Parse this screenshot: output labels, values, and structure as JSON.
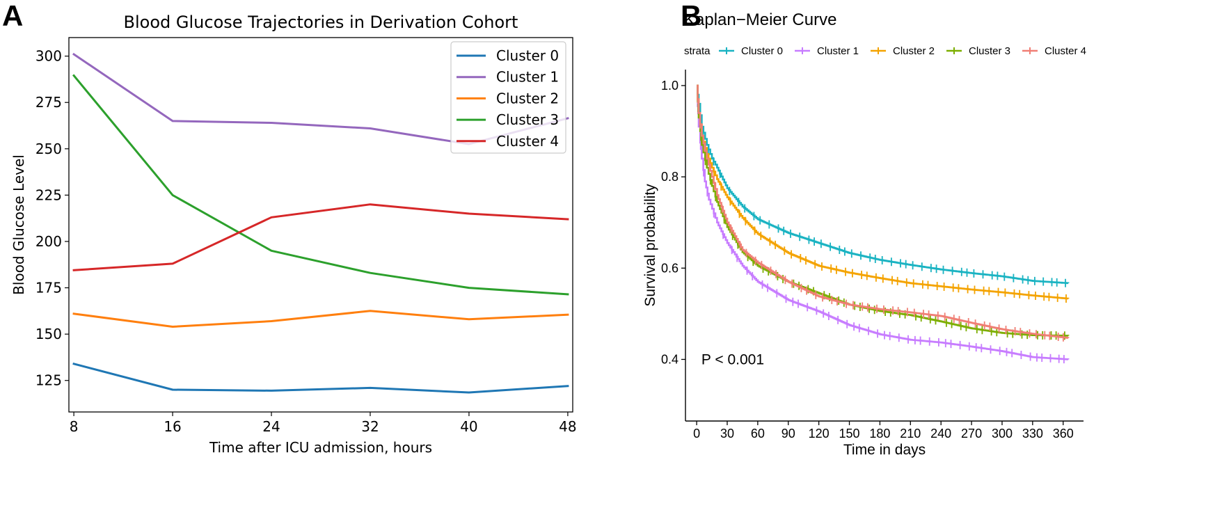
{
  "panel_labels": {
    "a": "A",
    "b": "B"
  },
  "chart_data": [
    {
      "type": "line",
      "title": "Blood Glucose Trajectories in Derivation Cohort",
      "xlabel": "Time after ICU admission, hours",
      "ylabel": "Blood Glucose Level",
      "x": [
        8,
        16,
        24,
        32,
        40,
        48
      ],
      "xticks": [
        "8",
        "16",
        "24",
        "32",
        "40",
        "48"
      ],
      "xlim": [
        7.6,
        48.4
      ],
      "ylim": [
        108,
        310
      ],
      "yticks": [
        125,
        150,
        175,
        200,
        225,
        250,
        275,
        300
      ],
      "legend_position": "top-right",
      "series": [
        {
          "name": "Cluster 0",
          "color": "#1f77b4",
          "values": [
            134,
            120,
            119.5,
            121,
            118.5,
            122
          ]
        },
        {
          "name": "Cluster 1",
          "color": "#9467bd",
          "values": [
            301,
            265,
            264,
            261,
            252.5,
            266.5
          ]
        },
        {
          "name": "Cluster 2",
          "color": "#ff7f0e",
          "values": [
            161,
            154,
            157,
            162.5,
            158,
            160.5
          ]
        },
        {
          "name": "Cluster 3",
          "color": "#2ca02c",
          "values": [
            289.5,
            225,
            195,
            183,
            175,
            171.5
          ]
        },
        {
          "name": "Cluster 4",
          "color": "#d62728",
          "values": [
            184.5,
            188,
            213,
            220,
            215,
            212
          ]
        }
      ]
    },
    {
      "type": "line",
      "subtype": "step-survival",
      "title": "Kaplan−Meier Curve",
      "legend_title": "strata",
      "xlabel": "Time in days",
      "ylabel": "Survival probability",
      "xlim": [
        -11,
        380
      ],
      "ylim": [
        0.265,
        1.035
      ],
      "xticks": [
        0,
        30,
        60,
        90,
        120,
        150,
        180,
        210,
        240,
        270,
        300,
        330,
        360
      ],
      "yticks": [
        "0.4",
        "0.6",
        "0.8",
        "1.0"
      ],
      "annotation": "P < 0.001",
      "annotation_at": [
        30,
        0.4
      ],
      "legend_position": "top",
      "series": [
        {
          "name": "Cluster 0",
          "color": "#1ab3c2",
          "points": [
            [
              0,
              1.0
            ],
            [
              2,
              0.96
            ],
            [
              5,
              0.91
            ],
            [
              10,
              0.87
            ],
            [
              15,
              0.84
            ],
            [
              20,
              0.82
            ],
            [
              30,
              0.775
            ],
            [
              45,
              0.735
            ],
            [
              60,
              0.707
            ],
            [
              90,
              0.677
            ],
            [
              120,
              0.655
            ],
            [
              150,
              0.633
            ],
            [
              180,
              0.618
            ],
            [
              210,
              0.607
            ],
            [
              240,
              0.597
            ],
            [
              270,
              0.589
            ],
            [
              300,
              0.582
            ],
            [
              330,
              0.572
            ],
            [
              365,
              0.567
            ]
          ]
        },
        {
          "name": "Cluster 1",
          "color": "#c77cff",
          "points": [
            [
              0,
              1.0
            ],
            [
              2,
              0.91
            ],
            [
              5,
              0.84
            ],
            [
              8,
              0.79
            ],
            [
              12,
              0.75
            ],
            [
              20,
              0.7
            ],
            [
              30,
              0.655
            ],
            [
              45,
              0.605
            ],
            [
              60,
              0.57
            ],
            [
              90,
              0.53
            ],
            [
              120,
              0.505
            ],
            [
              150,
              0.475
            ],
            [
              180,
              0.455
            ],
            [
              210,
              0.443
            ],
            [
              240,
              0.437
            ],
            [
              270,
              0.428
            ],
            [
              300,
              0.418
            ],
            [
              330,
              0.405
            ],
            [
              365,
              0.4
            ]
          ]
        },
        {
          "name": "Cluster 2",
          "color": "#f4a300",
          "points": [
            [
              0,
              1.0
            ],
            [
              2,
              0.94
            ],
            [
              5,
              0.89
            ],
            [
              10,
              0.85
            ],
            [
              15,
              0.82
            ],
            [
              20,
              0.795
            ],
            [
              30,
              0.755
            ],
            [
              45,
              0.71
            ],
            [
              60,
              0.675
            ],
            [
              90,
              0.633
            ],
            [
              120,
              0.605
            ],
            [
              150,
              0.59
            ],
            [
              180,
              0.578
            ],
            [
              210,
              0.567
            ],
            [
              240,
              0.56
            ],
            [
              270,
              0.553
            ],
            [
              300,
              0.547
            ],
            [
              330,
              0.54
            ],
            [
              365,
              0.533
            ]
          ]
        },
        {
          "name": "Cluster 3",
          "color": "#7cae00",
          "points": [
            [
              0,
              1.0
            ],
            [
              2,
              0.93
            ],
            [
              5,
              0.87
            ],
            [
              10,
              0.82
            ],
            [
              15,
              0.78
            ],
            [
              20,
              0.745
            ],
            [
              30,
              0.69
            ],
            [
              45,
              0.635
            ],
            [
              60,
              0.605
            ],
            [
              90,
              0.57
            ],
            [
              120,
              0.545
            ],
            [
              150,
              0.52
            ],
            [
              180,
              0.506
            ],
            [
              210,
              0.497
            ],
            [
              240,
              0.483
            ],
            [
              270,
              0.468
            ],
            [
              300,
              0.458
            ],
            [
              330,
              0.453
            ],
            [
              365,
              0.452
            ]
          ]
        },
        {
          "name": "Cluster 4",
          "color": "#f07f75",
          "points": [
            [
              0,
              1.0
            ],
            [
              2,
              0.94
            ],
            [
              5,
              0.89
            ],
            [
              10,
              0.84
            ],
            [
              15,
              0.8
            ],
            [
              20,
              0.76
            ],
            [
              30,
              0.7
            ],
            [
              45,
              0.64
            ],
            [
              60,
              0.612
            ],
            [
              90,
              0.57
            ],
            [
              120,
              0.538
            ],
            [
              150,
              0.52
            ],
            [
              180,
              0.51
            ],
            [
              210,
              0.503
            ],
            [
              240,
              0.495
            ],
            [
              270,
              0.48
            ],
            [
              300,
              0.466
            ],
            [
              330,
              0.456
            ],
            [
              365,
              0.447
            ]
          ]
        }
      ]
    }
  ]
}
